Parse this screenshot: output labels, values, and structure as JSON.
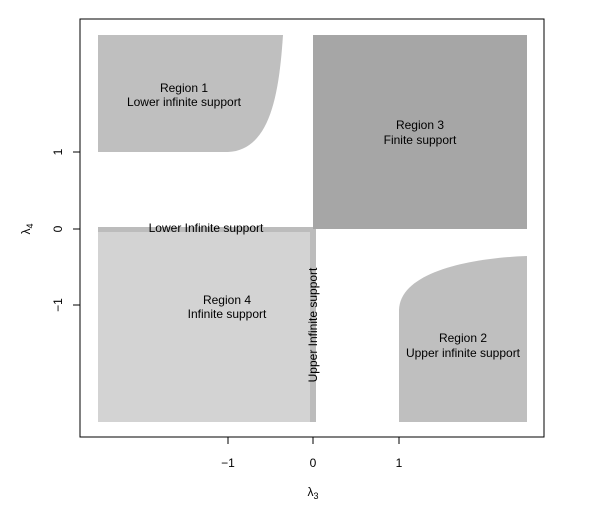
{
  "axes": {
    "x": {
      "ticks": [
        {
          "value": -1,
          "label": "−1"
        },
        {
          "value": 0,
          "label": "0"
        },
        {
          "value": 1,
          "label": "1"
        }
      ],
      "title": "λ3",
      "title_base": "λ",
      "title_sub": "3"
    },
    "y": {
      "ticks": [
        {
          "value": 1,
          "label": "1"
        },
        {
          "value": 0,
          "label": "0"
        },
        {
          "value": -1,
          "label": "−1"
        }
      ],
      "title": "λ4",
      "title_base": "λ",
      "title_sub": "4"
    }
  },
  "regions": [
    {
      "id": "region-1",
      "name": "Region 1",
      "support": "Lower infinite support",
      "color": "#bfbfbf"
    },
    {
      "id": "region-2",
      "name": "Region 2",
      "support": "Upper infinite support",
      "color": "#bfbfbf"
    },
    {
      "id": "region-3",
      "name": "Region 3",
      "support": "Finite support",
      "color": "#a6a6a6"
    },
    {
      "id": "region-4",
      "name": "Region 4",
      "support": "Infinite support",
      "color": "#d3d3d3"
    }
  ],
  "boundary_labels": {
    "lower": "Lower Infinite support",
    "upper": "Upper Infinite support"
  },
  "colors": {
    "boundary_strip": "#bcbcbc",
    "frame": "#000000"
  }
}
